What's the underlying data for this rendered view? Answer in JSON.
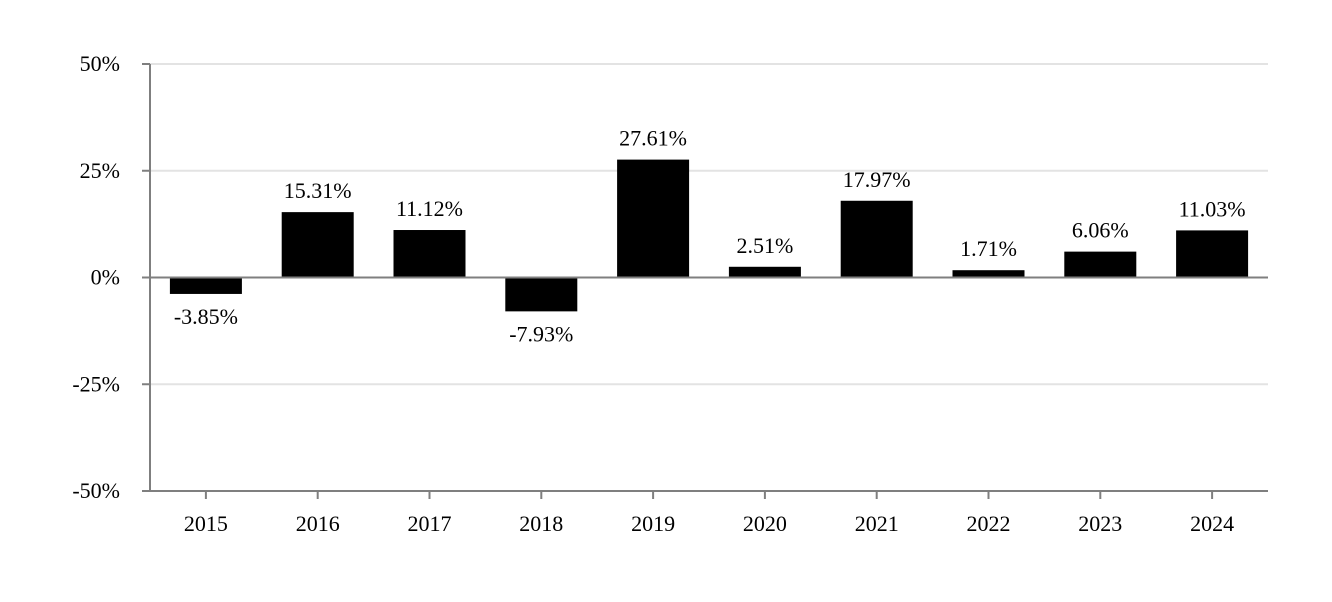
{
  "chart_data": {
    "type": "bar",
    "title": "",
    "xlabel": "",
    "ylabel": "",
    "categories": [
      "2015",
      "2016",
      "2017",
      "2018",
      "2019",
      "2020",
      "2021",
      "2022",
      "2023",
      "2024"
    ],
    "values": [
      -3.85,
      15.31,
      11.12,
      -7.93,
      27.61,
      2.51,
      17.97,
      1.71,
      6.06,
      11.03
    ],
    "data_labels": [
      "-3.85%",
      "15.31%",
      "11.12%",
      "-7.93%",
      "27.61%",
      "2.51%",
      "17.97%",
      "1.71%",
      "6.06%",
      "11.03%"
    ],
    "ylim": [
      -50,
      50
    ],
    "yticks": [
      50,
      25,
      0,
      -25,
      -50
    ],
    "ytick_labels": [
      "50%",
      "25%",
      "0%",
      "-25%",
      "-50%"
    ],
    "grid": true,
    "legend": "none",
    "colors": {
      "bar": "#000000",
      "grid": "#e3e3e3",
      "axis": "#7f7f7f",
      "zero_line": "#7f7f7f"
    }
  }
}
